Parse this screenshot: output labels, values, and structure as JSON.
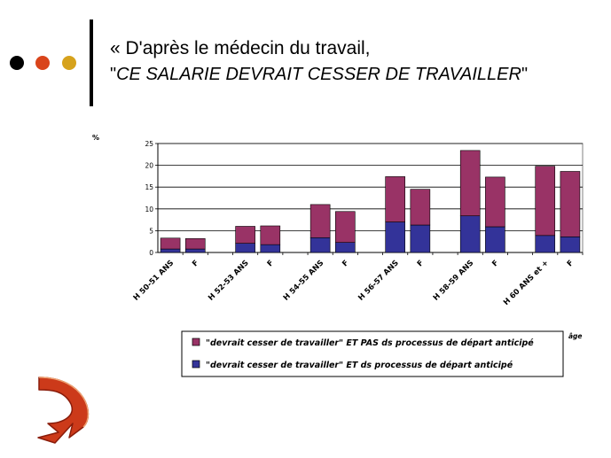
{
  "header": {
    "line1": "« D'après le médecin du travail,",
    "line2_open": "\"",
    "line2_italic": "CE SALARIE DEVRAIT CESSER DE TRAVAILLER",
    "line2_close": "\""
  },
  "colors": {
    "dot1": "#000000",
    "dot2": "#d9441a",
    "dot3": "#d6a21c",
    "series_top": "#993366",
    "series_bottom": "#333399",
    "arrow": "#cc3a1a"
  },
  "chart_data": {
    "type": "bar",
    "stacked": true,
    "ylabel": "%",
    "xlabel": "âge",
    "ylim": [
      0,
      25
    ],
    "yticks": [
      0,
      5,
      10,
      15,
      20,
      25
    ],
    "grid": true,
    "legend_position": "bottom",
    "groups": [
      "H 50-51 ANS",
      "H 52-53 ANS",
      "H 54-55 ANS",
      "H 56-57 ANS",
      "H 58-59 ANS",
      "H 60 ANS et +"
    ],
    "categories": [
      "H 50-51 ANS",
      "F",
      "H 52-53 ANS",
      "F",
      "H 54-55 ANS",
      "F",
      "H 56-57 ANS",
      "F",
      "H 58-59 ANS",
      "F",
      "H 60 ANS et +",
      "F"
    ],
    "series": [
      {
        "name": "\"devrait cesser de travailler\" ET ds processus de départ anticipé",
        "color": "#333399",
        "values": [
          0.8,
          0.8,
          2.1,
          1.8,
          3.4,
          2.3,
          7.0,
          6.3,
          8.4,
          5.9,
          3.9,
          3.6
        ]
      },
      {
        "name": "\"devrait cesser de travailler\" ET PAS ds processus de départ anticipé",
        "color": "#993366",
        "values": [
          2.5,
          2.4,
          3.9,
          4.3,
          7.6,
          7.1,
          10.4,
          8.2,
          15.0,
          11.4,
          15.9,
          15.0
        ]
      }
    ]
  }
}
